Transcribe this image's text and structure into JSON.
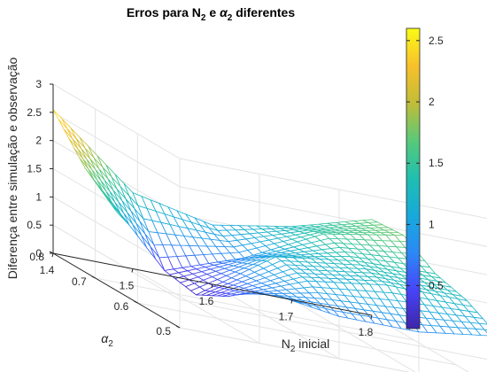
{
  "chart_data": {
    "type": "surface",
    "title": "Erros para N₂ e α₂ diferentes",
    "title_parts": {
      "prefix": "Erros para N",
      "sub1": "2",
      "mid": " e ",
      "alpha": "α",
      "sub2": "2",
      "suffix": " diferentes"
    },
    "xlabel": "N₂ inicial",
    "xlabel_parts": {
      "prefix": "N",
      "sub": "2",
      "suffix": " inicial"
    },
    "ylabel": "α₂",
    "ylabel_parts": {
      "sym": "α",
      "sub": "2"
    },
    "zlabel": "Diferença entre simulação e observação",
    "x_ticks": [
      "1.4",
      "1.5",
      "1.6",
      "1.7",
      "1.8"
    ],
    "y_ticks": [
      "0.5",
      "0.6",
      "0.7",
      "0.8"
    ],
    "z_ticks": [
      "0",
      "0.5",
      "1",
      "1.5",
      "2",
      "2.5",
      "3"
    ],
    "xlim": [
      1.4,
      1.8
    ],
    "ylim": [
      0.5,
      0.8
    ],
    "zlim": [
      0,
      3
    ],
    "grid": true,
    "colormap": "parula",
    "colorbar": {
      "ticks": [
        "0.5",
        "1",
        "1.5",
        "2",
        "2.5"
      ],
      "range": [
        0.15,
        2.6
      ]
    },
    "surface_control": {
      "x": [
        1.4,
        1.5,
        1.6,
        1.7,
        1.8
      ],
      "y": [
        0.5,
        0.575,
        0.65,
        0.725,
        0.8
      ],
      "z": [
        [
          1.6,
          0.95,
          0.75,
          0.75,
          0.95
        ],
        [
          1.35,
          0.5,
          1.05,
          1.25,
          1.25
        ],
        [
          1.4,
          0.2,
          1.15,
          1.35,
          1.4
        ],
        [
          1.85,
          0.3,
          0.8,
          1.5,
          1.75
        ],
        [
          2.55,
          1.35,
          1.05,
          1.3,
          1.7
        ]
      ]
    }
  }
}
